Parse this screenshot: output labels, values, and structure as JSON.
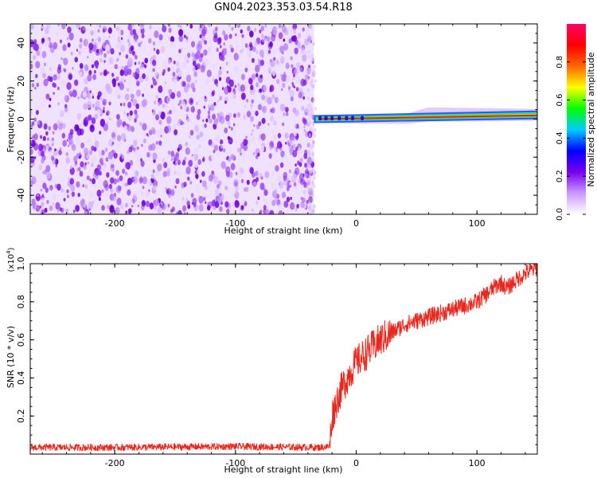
{
  "title": "GN04.2023.353.03.54.R18",
  "chart_data": [
    {
      "type": "heatmap",
      "xlabel": "Height of straight line (km)",
      "ylabel": "Frequency (Hz)",
      "xlim": [
        -270,
        150
      ],
      "ylim": [
        -50,
        50
      ],
      "xticks": [
        -200,
        -100,
        0,
        100
      ],
      "yticks": [
        -40,
        -20,
        0,
        20,
        40
      ],
      "colorbar": {
        "label": "Normalized spectral amplitude",
        "range": [
          0,
          1
        ],
        "ticks": [
          0.0,
          0.2,
          0.4,
          0.6,
          0.8
        ],
        "colors": [
          "#ffffff",
          "#cc99ff",
          "#7700ee",
          "#0000ff",
          "#00ccff",
          "#00ff00",
          "#ffff00",
          "#ff6600",
          "#ff0000",
          "#ff0066"
        ]
      },
      "regions": [
        {
          "name": "noise",
          "x": [
            -270,
            -35
          ],
          "y": [
            -50,
            50
          ],
          "amplitude": [
            0.0,
            0.3
          ]
        },
        {
          "name": "signal",
          "x": [
            -35,
            150
          ],
          "y_center": [
            0,
            2
          ],
          "amplitude": [
            0.5,
            1.0
          ]
        }
      ]
    },
    {
      "type": "line",
      "xlabel": "Height of straight line (km)",
      "ylabel": "SNR (10 * v/v)",
      "yscale_label": "(x10^4)",
      "xlim": [
        -270,
        150
      ],
      "ylim": [
        0,
        1.0
      ],
      "xticks": [
        -200,
        -100,
        0,
        100
      ],
      "yticks": [
        0.2,
        0.4,
        0.6,
        0.8,
        1.0
      ],
      "series": [
        {
          "color": "#e8281e",
          "x": [
            -270,
            -200,
            -100,
            -30,
            -22,
            -20,
            -15,
            -10,
            -5,
            0,
            10,
            20,
            30,
            40,
            50,
            60,
            70,
            80,
            90,
            100,
            110,
            115,
            120,
            125,
            130,
            140,
            150
          ],
          "y": [
            0.035,
            0.035,
            0.04,
            0.035,
            0.04,
            0.2,
            0.3,
            0.37,
            0.43,
            0.48,
            0.54,
            0.6,
            0.64,
            0.68,
            0.7,
            0.72,
            0.74,
            0.76,
            0.78,
            0.8,
            0.85,
            0.88,
            0.9,
            0.87,
            0.9,
            0.95,
            0.98
          ]
        }
      ]
    }
  ]
}
